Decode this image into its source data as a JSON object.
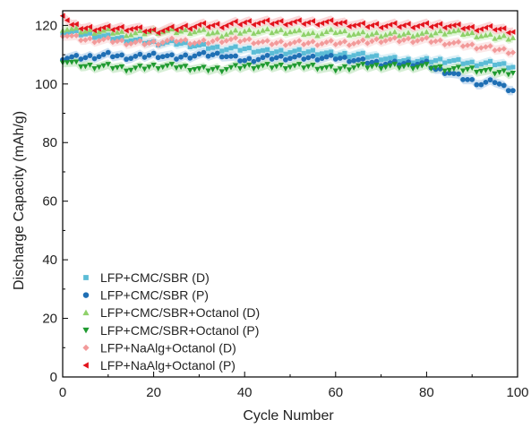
{
  "chart_data": {
    "type": "scatter",
    "xlabel": "Cycle Number",
    "ylabel": "Discharge Capacity (mAh/g)",
    "xlim": [
      0,
      100
    ],
    "ylim": [
      0,
      125
    ],
    "xticks": [
      0,
      20,
      40,
      60,
      80,
      100
    ],
    "yticks": [
      0,
      20,
      40,
      60,
      80,
      100,
      120
    ],
    "grid": false,
    "legend_position": "bottom-left",
    "series": [
      {
        "name": "LFP+CMC/SBR (D)",
        "color": "#5bbcd6",
        "band_color": "#b9e2ef",
        "marker": "square",
        "x": [
          0,
          5,
          10,
          15,
          20,
          25,
          30,
          35,
          40,
          45,
          50,
          55,
          60,
          65,
          70,
          75,
          80,
          85,
          90,
          95,
          99
        ],
        "y": [
          118,
          117,
          116,
          115,
          114,
          114,
          113,
          112,
          112,
          111,
          111,
          111,
          110,
          110,
          109,
          108,
          108,
          108,
          107,
          107,
          106
        ]
      },
      {
        "name": "LFP+CMC/SBR (P)",
        "color": "#1f6fb4",
        "band_color": "#a6c8ea",
        "marker": "circle",
        "x": [
          0,
          5,
          10,
          15,
          20,
          25,
          30,
          35,
          40,
          45,
          50,
          55,
          60,
          65,
          70,
          75,
          80,
          82,
          85,
          88,
          90,
          92,
          95,
          97,
          99
        ],
        "y": [
          109,
          109,
          110,
          109,
          110,
          109,
          110,
          110,
          108,
          109,
          109,
          109,
          109,
          108,
          107,
          107,
          107,
          105,
          104,
          102,
          101,
          100,
          101,
          99,
          98
        ]
      },
      {
        "name": "LFP+CMC/SBR+Octanol (D)",
        "color": "#8fd16a",
        "band_color": "#cdeec0",
        "marker": "triangle-up",
        "x": [
          0,
          5,
          10,
          15,
          20,
          25,
          30,
          35,
          40,
          45,
          50,
          55,
          60,
          65,
          70,
          75,
          80,
          85,
          90,
          95,
          99
        ],
        "y": [
          119,
          118,
          118,
          117,
          118,
          118,
          118,
          117,
          118,
          118,
          118,
          117,
          118,
          117,
          117,
          117,
          117,
          118,
          117,
          116,
          116
        ]
      },
      {
        "name": "LFP+CMC/SBR+Octanol (P)",
        "color": "#1f9a30",
        "band_color": "#b4e0b3",
        "marker": "triangle-down",
        "x": [
          0,
          5,
          10,
          15,
          20,
          25,
          30,
          35,
          40,
          45,
          50,
          55,
          60,
          65,
          70,
          75,
          80,
          85,
          90,
          95,
          99
        ],
        "y": [
          108,
          106,
          106,
          105,
          106,
          106,
          105,
          105,
          106,
          106,
          106,
          106,
          105,
          106,
          106,
          106,
          106,
          105,
          105,
          104,
          104
        ]
      },
      {
        "name": "LFP+NaAlg+Octanol (D)",
        "color": "#f29a9a",
        "band_color": "#fad6d6",
        "marker": "diamond",
        "x": [
          0,
          5,
          10,
          15,
          20,
          25,
          30,
          35,
          40,
          45,
          50,
          55,
          60,
          65,
          70,
          75,
          80,
          85,
          90,
          95,
          99
        ],
        "y": [
          117,
          115,
          115,
          114,
          114,
          115,
          114,
          115,
          115,
          114,
          114,
          114,
          114,
          114,
          115,
          115,
          115,
          114,
          113,
          112,
          111
        ]
      },
      {
        "name": "LFP+NaAlg+Octanol (P)",
        "color": "#e3121b",
        "band_color": "#f7b7b9",
        "marker": "triangle-left",
        "x": [
          0,
          2,
          5,
          10,
          15,
          20,
          25,
          30,
          35,
          40,
          45,
          50,
          55,
          60,
          65,
          70,
          75,
          80,
          85,
          90,
          95,
          99
        ],
        "y": [
          124,
          120,
          119,
          119,
          119,
          118,
          119,
          120,
          120,
          121,
          121,
          121,
          121,
          121,
          120,
          120,
          120,
          120,
          120,
          119,
          119,
          118
        ]
      }
    ]
  }
}
